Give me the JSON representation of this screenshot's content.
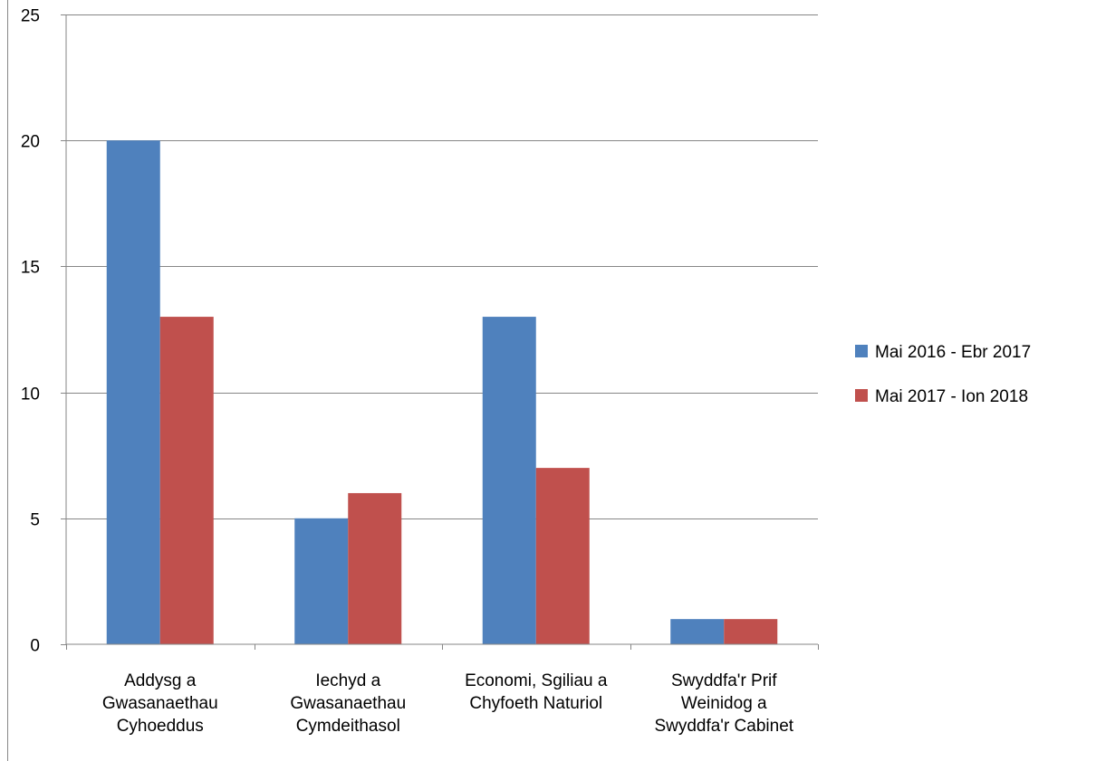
{
  "chart_data": {
    "type": "bar",
    "title": "",
    "xlabel": "",
    "ylabel": "",
    "categories": [
      [
        "Addysg a",
        "Gwasanaethau",
        "Cyhoeddus"
      ],
      [
        "Iechyd a",
        "Gwasanaethau",
        "Cymdeithasol"
      ],
      [
        "Economi, Sgiliau a",
        "Chyfoeth Naturiol"
      ],
      [
        "Swyddfa'r Prif",
        "Weinidog a",
        "Swyddfa'r Cabinet"
      ]
    ],
    "series": [
      {
        "name": "Mai 2016 - Ebr 2017",
        "color": "#4F81BD",
        "values": [
          20,
          5,
          13,
          1
        ]
      },
      {
        "name": "Mai 2017 - Ion 2018",
        "color": "#C0504D",
        "values": [
          13,
          6,
          7,
          1
        ]
      }
    ],
    "ylim": [
      0,
      25
    ],
    "yticks": [
      0,
      5,
      10,
      15,
      20,
      25
    ],
    "grid": true,
    "legend_position": "right"
  }
}
